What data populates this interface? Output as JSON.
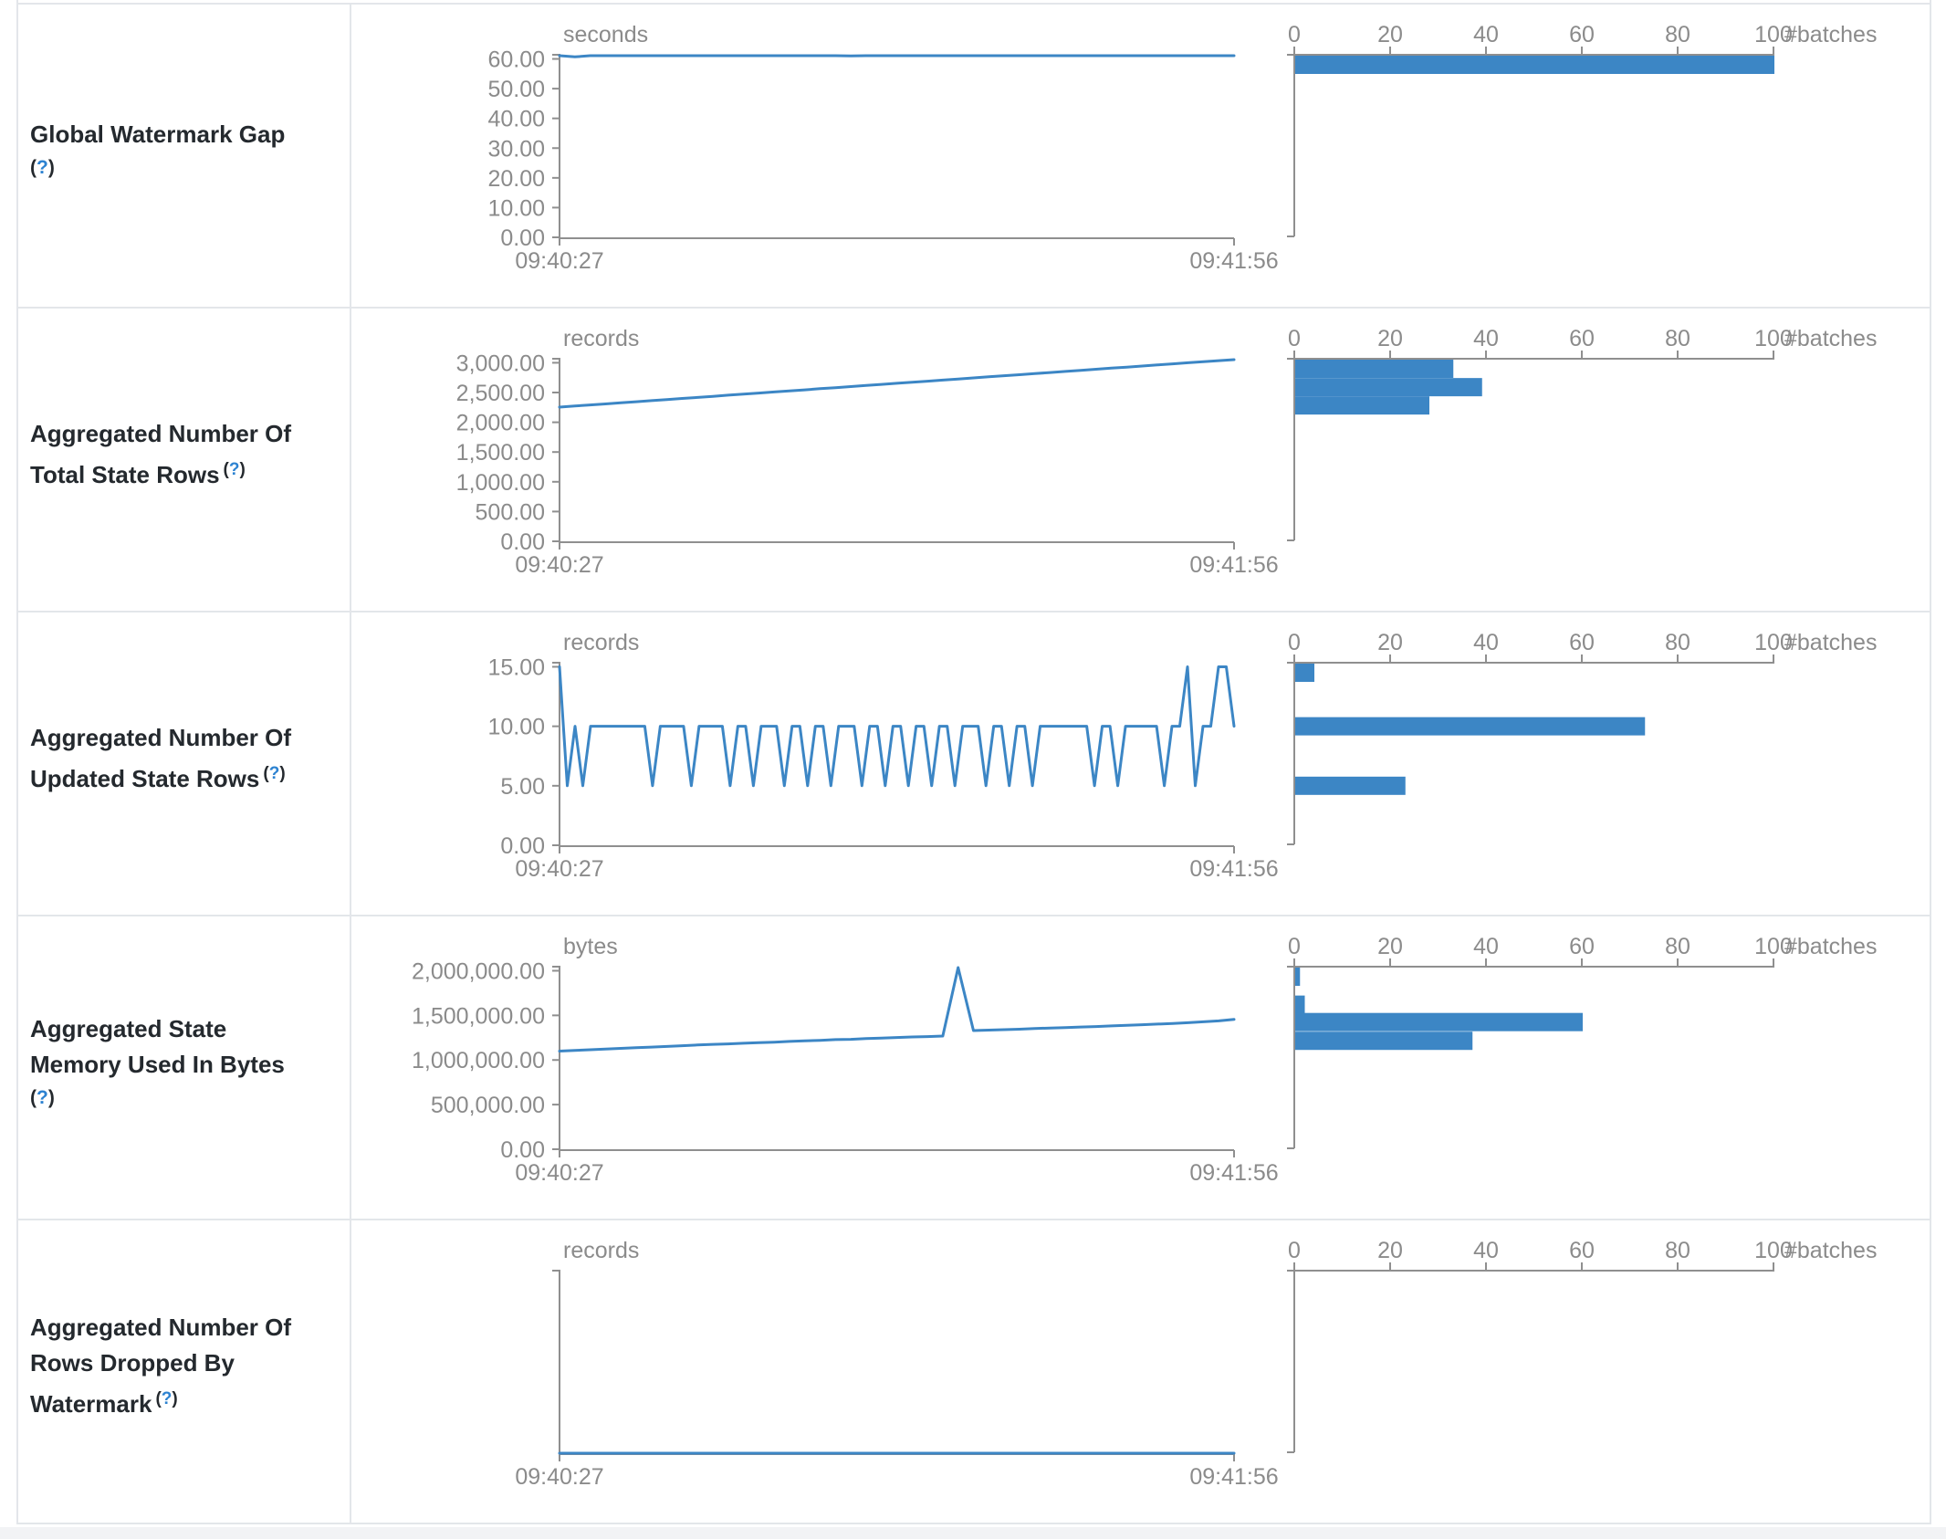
{
  "colors": {
    "accent_blue": "#3c86c5",
    "axis_gray": "#8f8f8f",
    "axis_text_gray": "#8b8b8b",
    "title_dark": "#24292e",
    "help_blue": "#2c82d1",
    "border_gray": "#e3e6ea",
    "page_bottom_gray": "#f2f3f5"
  },
  "chart_data": [
    {
      "type": "line+histogram",
      "title_lines": [
        "Global Watermark Gap"
      ],
      "help_label": "(?)",
      "help_inline": false,
      "unit": "seconds",
      "x_start_label": "09:40:27",
      "x_end_label": "09:41:56",
      "y_max": 61.7,
      "y_ticks": [
        {
          "v": 60,
          "label": "60.00"
        },
        {
          "v": 50,
          "label": "50.00"
        },
        {
          "v": 40,
          "label": "40.00"
        },
        {
          "v": 30,
          "label": "30.00"
        },
        {
          "v": 20,
          "label": "20.00"
        },
        {
          "v": 10,
          "label": "10.00"
        },
        {
          "v": 0,
          "label": "0.00"
        }
      ],
      "line_values": [
        61.4,
        60.7,
        61.2,
        61.3,
        61.2,
        61.3,
        61.4,
        61.3,
        61.2,
        61.3,
        61.3,
        61.2,
        61.4,
        61.5,
        61.3,
        61.2,
        61.3,
        61.4,
        61.2,
        61.0,
        61.3,
        61.4,
        61.2,
        61.3,
        61.5,
        61.2,
        61.3,
        61.3,
        61.1,
        61.4,
        61.3,
        61.2,
        61.4,
        61.3,
        61.2,
        61.3,
        61.4,
        61.5,
        61.3,
        61.2,
        61.4,
        61.3,
        61.3,
        61.4,
        61.3
      ],
      "histogram": {
        "x_ticks": [
          "0",
          "20",
          "40",
          "60",
          "80",
          "100"
        ],
        "x_max": 100,
        "unit_label": "#batches",
        "bars": [
          {
            "value": 61,
            "count": 100
          }
        ]
      }
    },
    {
      "type": "line+histogram",
      "title_lines": [
        "Aggregated Number Of",
        "Total State Rows"
      ],
      "help_label": "(?)",
      "help_inline": true,
      "unit": "records",
      "x_start_label": "09:40:27",
      "x_end_label": "09:41:56",
      "y_max": 3083,
      "y_ticks": [
        {
          "v": 3000,
          "label": "3,000.00"
        },
        {
          "v": 2500,
          "label": "2,500.00"
        },
        {
          "v": 2000,
          "label": "2,000.00"
        },
        {
          "v": 1500,
          "label": "1,500.00"
        },
        {
          "v": 1000,
          "label": "1,000.00"
        },
        {
          "v": 500,
          "label": "500.00"
        },
        {
          "v": 0,
          "label": "0.00"
        }
      ],
      "line_values": [
        2255,
        2273,
        2291,
        2309,
        2327,
        2345,
        2364,
        2382,
        2400,
        2418,
        2436,
        2455,
        2473,
        2491,
        2509,
        2527,
        2545,
        2564,
        2582,
        2600,
        2618,
        2636,
        2655,
        2673,
        2691,
        2709,
        2727,
        2745,
        2764,
        2782,
        2800,
        2818,
        2836,
        2855,
        2873,
        2891,
        2909,
        2927,
        2945,
        2964,
        2982,
        3000,
        3018,
        3036,
        3055
      ],
      "histogram": {
        "x_ticks": [
          "0",
          "20",
          "40",
          "60",
          "80",
          "100"
        ],
        "x_max": 100,
        "unit_label": "#batches",
        "bars": [
          {
            "value": 3020,
            "count": 33
          },
          {
            "value": 2590,
            "count": 39
          },
          {
            "value": 2283,
            "count": 28
          }
        ]
      }
    },
    {
      "type": "line+histogram",
      "title_lines": [
        "Aggregated Number Of",
        "Updated State Rows"
      ],
      "help_label": "(?)",
      "help_inline": true,
      "unit": "records",
      "x_start_label": "09:40:27",
      "x_end_label": "09:41:56",
      "y_max": 15.42,
      "y_ticks": [
        {
          "v": 15,
          "label": "15.00"
        },
        {
          "v": 10,
          "label": "10.00"
        },
        {
          "v": 5,
          "label": "5.00"
        },
        {
          "v": 0,
          "label": "0.00"
        }
      ],
      "line_values": [
        15,
        5,
        10,
        5,
        10,
        10,
        10,
        10,
        10,
        10,
        10,
        10,
        5,
        10,
        10,
        10,
        10,
        5,
        10,
        10,
        10,
        10,
        5,
        10,
        10,
        5,
        10,
        10,
        10,
        5,
        10,
        10,
        5,
        10,
        10,
        5,
        10,
        10,
        10,
        5,
        10,
        10,
        5,
        10,
        10,
        5,
        10,
        10,
        5,
        10,
        10,
        5,
        10,
        10,
        10,
        5,
        10,
        10,
        5,
        10,
        10,
        5,
        10,
        10,
        10,
        10,
        10,
        10,
        10,
        5,
        10,
        10,
        5,
        10,
        10,
        10,
        10,
        10,
        5,
        10,
        10,
        15,
        5,
        10,
        10,
        15,
        15,
        10
      ],
      "histogram": {
        "x_ticks": [
          "0",
          "20",
          "40",
          "60",
          "80",
          "100"
        ],
        "x_max": 100,
        "unit_label": "#batches",
        "bars": [
          {
            "value": 15,
            "count": 4
          },
          {
            "value": 10,
            "count": 73
          },
          {
            "value": 5,
            "count": 23
          }
        ]
      }
    },
    {
      "type": "line+histogram",
      "title_lines": [
        "Aggregated State",
        "Memory Used In Bytes"
      ],
      "help_label": "(?)",
      "help_inline": false,
      "unit": "bytes",
      "x_start_label": "09:40:27",
      "x_end_label": "09:41:56",
      "y_max": 2056000,
      "y_ticks": [
        {
          "v": 2000000,
          "label": "2,000,000.00"
        },
        {
          "v": 1500000,
          "label": "1,500,000.00"
        },
        {
          "v": 1000000,
          "label": "1,000,000.00"
        },
        {
          "v": 500000,
          "label": "500,000.00"
        },
        {
          "v": 0,
          "label": "0.00"
        }
      ],
      "line_values": [
        1100000,
        1108000,
        1115000,
        1122000,
        1130000,
        1138000,
        1145000,
        1152000,
        1160000,
        1168000,
        1175000,
        1180000,
        1188000,
        1195000,
        1200000,
        1208000,
        1215000,
        1220000,
        1228000,
        1232000,
        1240000,
        1245000,
        1252000,
        1258000,
        1262000,
        1268000,
        2050000,
        1330000,
        1335000,
        1340000,
        1345000,
        1352000,
        1358000,
        1362000,
        1370000,
        1375000,
        1382000,
        1388000,
        1395000,
        1402000,
        1410000,
        1418000,
        1428000,
        1438000,
        1455000
      ],
      "histogram": {
        "x_ticks": [
          "0",
          "20",
          "40",
          "60",
          "80",
          "100"
        ],
        "x_max": 100,
        "unit_label": "#batches",
        "bars": [
          {
            "value": 2000000,
            "count": 1
          },
          {
            "value": 1620000,
            "count": 2
          },
          {
            "value": 1425000,
            "count": 60
          },
          {
            "value": 1215000,
            "count": 37
          }
        ]
      }
    },
    {
      "type": "line+histogram",
      "title_lines": [
        "Aggregated Number Of",
        "Rows Dropped By",
        "Watermark"
      ],
      "help_label": "(?)",
      "help_inline": true,
      "unit": "records",
      "x_start_label": "09:40:27",
      "x_end_label": "09:41:56",
      "y_max": 1,
      "y_ticks": [],
      "line_values": [
        0,
        0
      ],
      "histogram": {
        "x_ticks": [
          "0",
          "20",
          "40",
          "60",
          "80",
          "100"
        ],
        "x_max": 100,
        "unit_label": "#batches",
        "bars": []
      }
    }
  ]
}
